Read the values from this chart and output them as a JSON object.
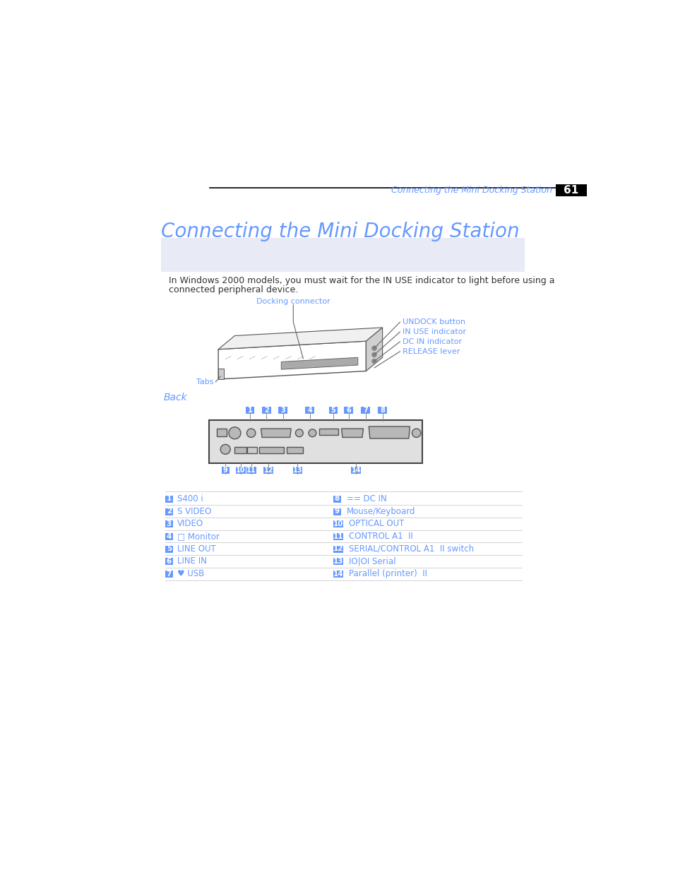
{
  "page_title": "Connecting the Mini Docking Station",
  "header_text": "Connecting the Mini Docking Station",
  "page_number": "61",
  "title_color": "#6699ff",
  "header_color": "#6699ff",
  "note_text_line1": "In Windows 2000 models, you must wait for the IN USE indicator to light before using a",
  "note_text_line2": "connected peripheral device.",
  "note_bg": "#e8eaf6",
  "back_label": "Back",
  "back_color": "#6699ff",
  "port_numbers_top": [
    "1",
    "2",
    "3",
    "4",
    "5",
    "6",
    "7",
    "8"
  ],
  "port_numbers_bottom": [
    "9",
    "10",
    "11",
    "12",
    "13",
    "14"
  ],
  "port_num_bg": "#6699ff",
  "table_rows": [
    {
      "num": "1",
      "left_label": "S400 i",
      "num2": "8",
      "right_label": "== DC IN"
    },
    {
      "num": "2",
      "left_label": "S VIDEO",
      "num2": "9",
      "right_label": "Mouse/Keyboard"
    },
    {
      "num": "3",
      "left_label": "VIDEO",
      "num2": "10",
      "right_label": "OPTICAL OUT"
    },
    {
      "num": "4",
      "left_label": "Monitor",
      "num2": "11",
      "right_label": "CONTROL A1 II"
    },
    {
      "num": "5",
      "left_label": "LINE OUT",
      "num2": "12",
      "right_label": "SERIAL/CONTROL A1 II switch"
    },
    {
      "num": "6",
      "left_label": "LINE IN",
      "num2": "13",
      "right_label": "IO|OI Serial"
    },
    {
      "num": "7",
      "left_label": "USB",
      "num2": "14",
      "right_label": "Parallel (printer) II"
    }
  ],
  "bg_color": "#ffffff"
}
